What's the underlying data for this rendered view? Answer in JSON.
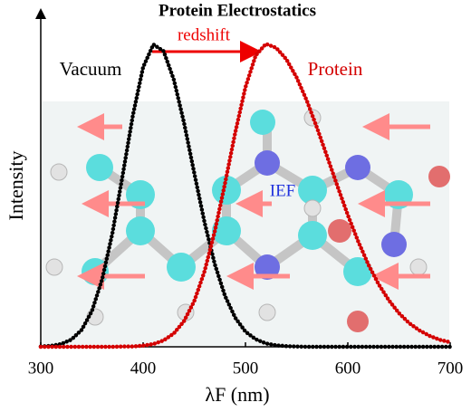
{
  "chart_data": {
    "type": "line",
    "title": "Protein Electrostatics",
    "x_label": "λF (nm)",
    "y_label": "Intensity",
    "annotations": {
      "shift": "redshift",
      "field": "IEF"
    },
    "x": [
      300,
      310,
      320,
      330,
      340,
      350,
      360,
      370,
      380,
      390,
      400,
      410,
      420,
      430,
      440,
      450,
      460,
      470,
      480,
      490,
      500,
      510,
      520,
      530,
      540,
      550,
      560,
      570,
      580,
      590,
      600,
      610,
      620,
      630,
      640,
      650,
      660,
      670,
      680,
      690,
      700
    ],
    "series": [
      {
        "name": "Vacuum",
        "color": "#000000",
        "values": [
          0.001,
          0.003,
          0.009,
          0.024,
          0.056,
          0.118,
          0.223,
          0.375,
          0.566,
          0.764,
          0.923,
          0.998,
          0.976,
          0.882,
          0.739,
          0.573,
          0.411,
          0.273,
          0.168,
          0.096,
          0.05,
          0.025,
          0.011,
          0.005,
          0.002,
          0.001,
          0,
          0,
          0,
          0,
          0,
          0,
          0,
          0,
          0,
          0,
          0,
          0,
          0,
          0,
          0
        ]
      },
      {
        "name": "Protein",
        "color": "#d40000",
        "values": [
          0,
          0,
          0,
          0,
          0,
          0,
          0,
          0,
          0.001,
          0.001,
          0.004,
          0.009,
          0.021,
          0.044,
          0.085,
          0.151,
          0.249,
          0.381,
          0.539,
          0.707,
          0.857,
          0.962,
          1.0,
          0.987,
          0.949,
          0.889,
          0.812,
          0.722,
          0.626,
          0.529,
          0.435,
          0.349,
          0.272,
          0.207,
          0.154,
          0.111,
          0.078,
          0.054,
          0.036,
          0.023,
          0.015
        ]
      }
    ],
    "xlim": [
      300,
      700
    ],
    "xticks": [
      300,
      400,
      500,
      600,
      700
    ],
    "ylim": [
      0,
      1.1
    ]
  }
}
